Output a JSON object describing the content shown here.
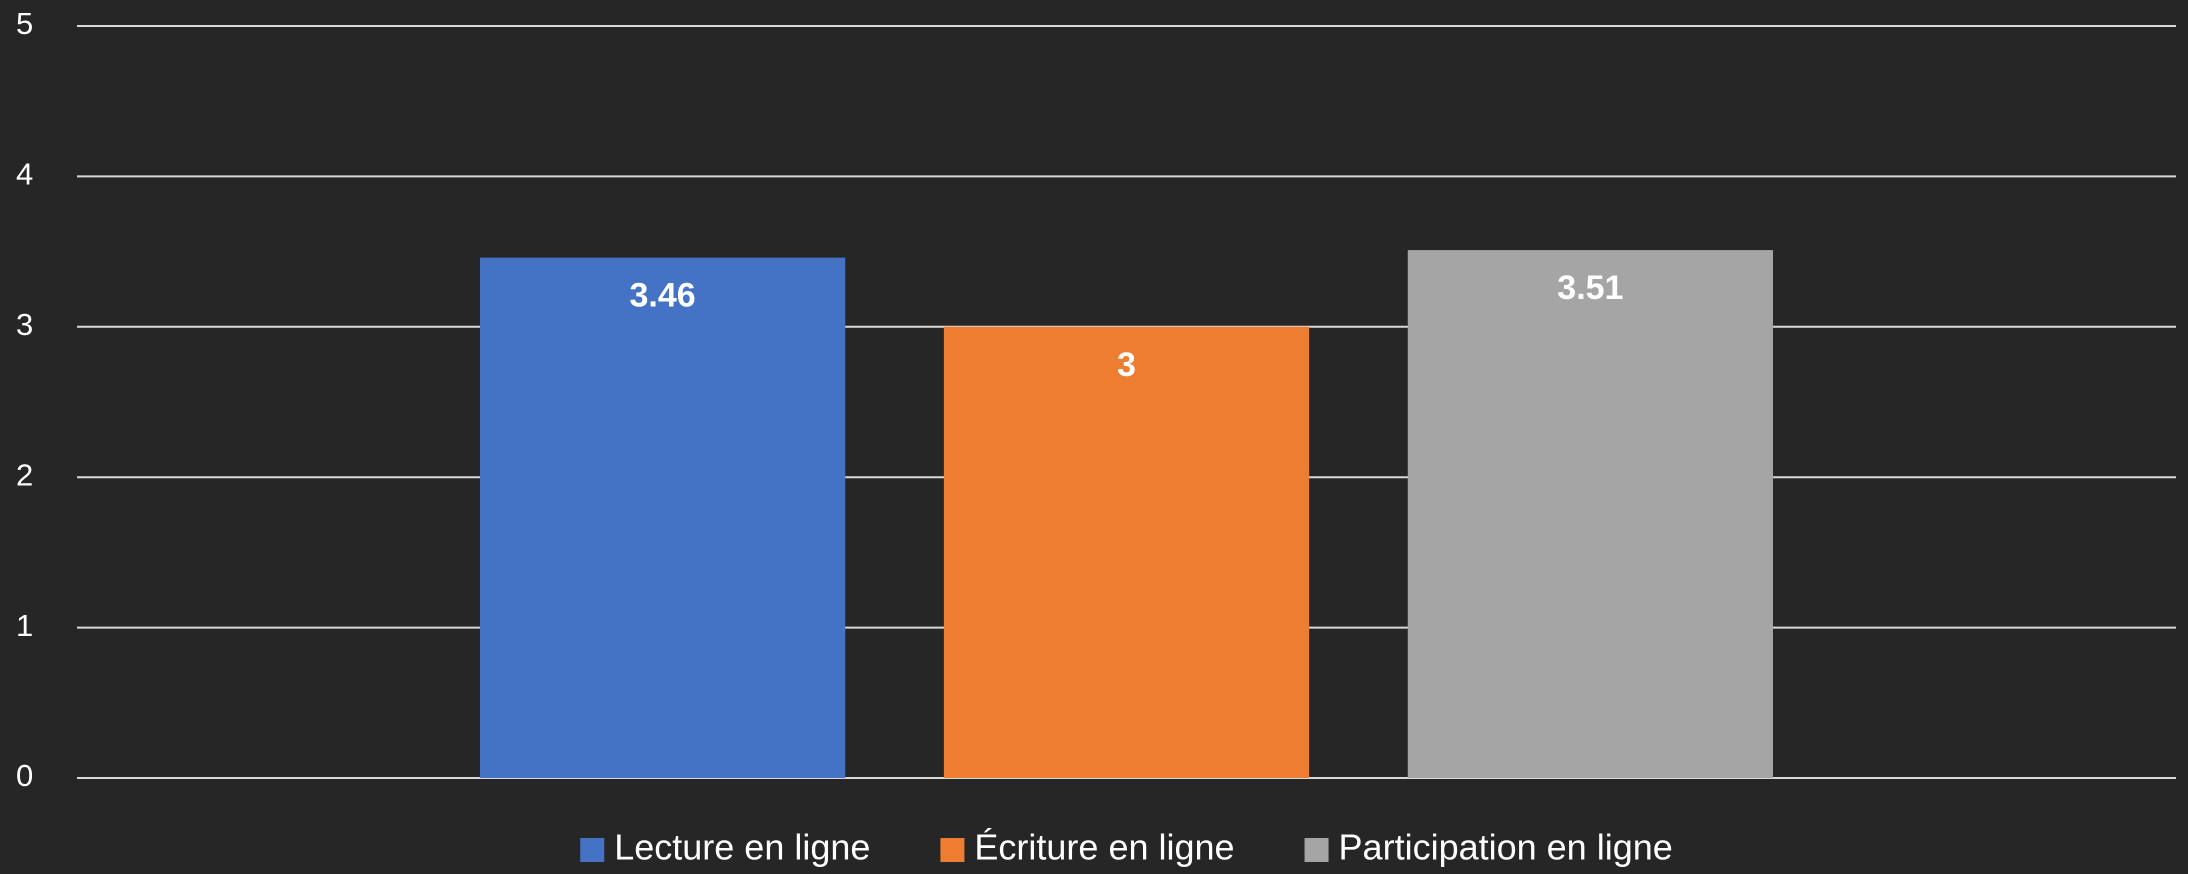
{
  "chart_data": {
    "type": "bar",
    "categories": [
      null
    ],
    "series": [
      {
        "name": "Lecture en ligne",
        "color": "#4472c4",
        "values": [
          3.46
        ]
      },
      {
        "name": "Écriture en ligne",
        "color": "#ed7d31",
        "values": [
          3
        ]
      },
      {
        "name": "Participation en ligne",
        "color": "#a5a5a5",
        "values": [
          3.51
        ]
      }
    ],
    "ylim": [
      0,
      5
    ],
    "yticks": [
      0,
      1,
      2,
      3,
      4,
      5
    ],
    "grid": true,
    "legend": "bottom"
  }
}
